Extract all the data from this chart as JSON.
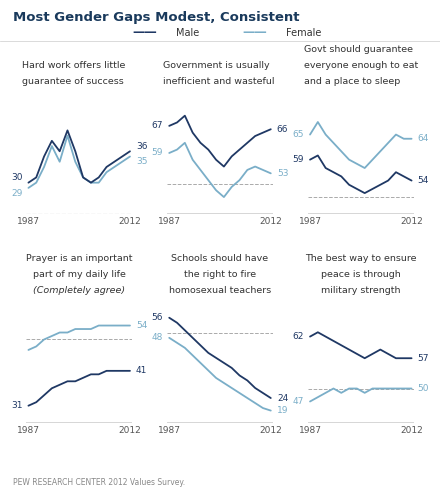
{
  "title": "Most Gender Gaps Modest, Consistent",
  "male_label": "Male",
  "female_label": "Female",
  "footer": "PEW RESEARCH CENTER 2012 Values Survey.",
  "male_color": "#1f3864",
  "female_color": "#7aaec8",
  "background": "#ffffff",
  "panels": [
    {
      "title_lines": [
        "Hard work offers little",
        "guarantee of success"
      ],
      "title_italic_last": false,
      "title_center": false,
      "dashed_ref": 50,
      "xaxis_dashed": true,
      "male_start_label": "30",
      "female_start_label": "29",
      "male_end_label": "36",
      "female_end_label": "35",
      "male": [
        30,
        31,
        35,
        38,
        36,
        40,
        36,
        31,
        30,
        31,
        33,
        34,
        35,
        36
      ],
      "female": [
        29,
        30,
        33,
        37,
        34,
        39,
        34,
        31,
        30,
        30,
        32,
        33,
        34,
        35
      ]
    },
    {
      "title_lines": [
        "Government is usually",
        "inefficient and wasteful"
      ],
      "title_italic_last": false,
      "title_center": false,
      "dashed_ref": 50,
      "xaxis_dashed": false,
      "male_start_label": "67",
      "female_start_label": "59",
      "male_end_label": "66",
      "female_end_label": "53",
      "male": [
        67,
        68,
        70,
        65,
        62,
        60,
        57,
        55,
        58,
        60,
        62,
        64,
        65,
        66
      ],
      "female": [
        59,
        60,
        62,
        57,
        54,
        51,
        48,
        46,
        49,
        51,
        54,
        55,
        54,
        53
      ]
    },
    {
      "title_lines": [
        "Govt should guarantee",
        "everyone enough to eat",
        "and a place to sleep"
      ],
      "title_italic_last": false,
      "title_center": false,
      "dashed_ref": 50,
      "xaxis_dashed": false,
      "male_start_label": "59",
      "female_start_label": "65",
      "male_end_label": "54",
      "female_end_label": "64",
      "male": [
        59,
        60,
        57,
        56,
        55,
        53,
        52,
        51,
        52,
        53,
        54,
        56,
        55,
        54
      ],
      "female": [
        65,
        68,
        65,
        63,
        61,
        59,
        58,
        57,
        59,
        61,
        63,
        65,
        64,
        64
      ]
    },
    {
      "title_lines": [
        "Prayer is an important",
        "part of my daily life",
        "(Completely agree)"
      ],
      "title_italic_last": true,
      "title_center": true,
      "dashed_ref": 50,
      "xaxis_dashed": false,
      "male_start_label": "31",
      "female_start_label": null,
      "male_end_label": "41",
      "female_end_label": "54",
      "male": [
        31,
        32,
        34,
        36,
        37,
        38,
        38,
        39,
        40,
        40,
        41,
        41,
        41,
        41
      ],
      "female": [
        47,
        48,
        50,
        51,
        52,
        52,
        53,
        53,
        53,
        54,
        54,
        54,
        54,
        54
      ]
    },
    {
      "title_lines": [
        "Schools should have",
        "the right to fire",
        "homosexual teachers"
      ],
      "title_italic_last": false,
      "title_center": true,
      "dashed_ref": 50,
      "xaxis_dashed": false,
      "male_start_label": "56",
      "female_start_label": "48",
      "male_end_label": "24",
      "female_end_label": "19",
      "male": [
        56,
        54,
        51,
        48,
        45,
        42,
        40,
        38,
        36,
        33,
        31,
        28,
        26,
        24
      ],
      "female": [
        48,
        46,
        44,
        41,
        38,
        35,
        32,
        30,
        28,
        26,
        24,
        22,
        20,
        19
      ]
    },
    {
      "title_lines": [
        "The best way to ensure",
        "peace is through",
        "military strength"
      ],
      "title_italic_last": false,
      "title_center": true,
      "dashed_ref": 50,
      "xaxis_dashed": false,
      "male_start_label": "62",
      "female_start_label": "47",
      "male_end_label": "57",
      "female_end_label": "50",
      "male": [
        62,
        63,
        62,
        61,
        60,
        59,
        58,
        57,
        58,
        59,
        58,
        57,
        57,
        57
      ],
      "female": [
        47,
        48,
        49,
        50,
        49,
        50,
        50,
        49,
        50,
        50,
        50,
        50,
        50,
        50
      ]
    }
  ]
}
